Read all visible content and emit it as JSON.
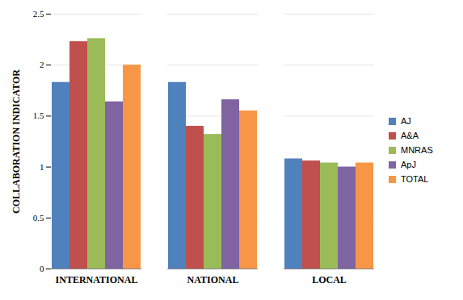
{
  "chart_data": {
    "type": "bar",
    "y_label": "COLLABORATION INDICATOR",
    "categories": [
      "INTERNATIONAL",
      "NATIONAL",
      "LOCAL"
    ],
    "series": [
      {
        "name": "AJ",
        "color": "#4F81BD",
        "values": [
          1.83,
          1.83,
          1.08
        ]
      },
      {
        "name": "A&A",
        "color": "#C0504D",
        "values": [
          2.23,
          1.4,
          1.06
        ]
      },
      {
        "name": "MNRAS",
        "color": "#9BBB59",
        "values": [
          2.26,
          1.32,
          1.04
        ]
      },
      {
        "name": "ApJ",
        "color": "#8064A2",
        "values": [
          1.64,
          1.66,
          1.0
        ]
      },
      {
        "name": "TOTAL",
        "color": "#F79646",
        "values": [
          2.0,
          1.55,
          1.04
        ]
      }
    ],
    "ylim": [
      0,
      2.5
    ],
    "yticks": [
      0,
      0.5,
      1,
      1.5,
      2,
      2.5
    ],
    "grid": true,
    "legend": "right"
  }
}
